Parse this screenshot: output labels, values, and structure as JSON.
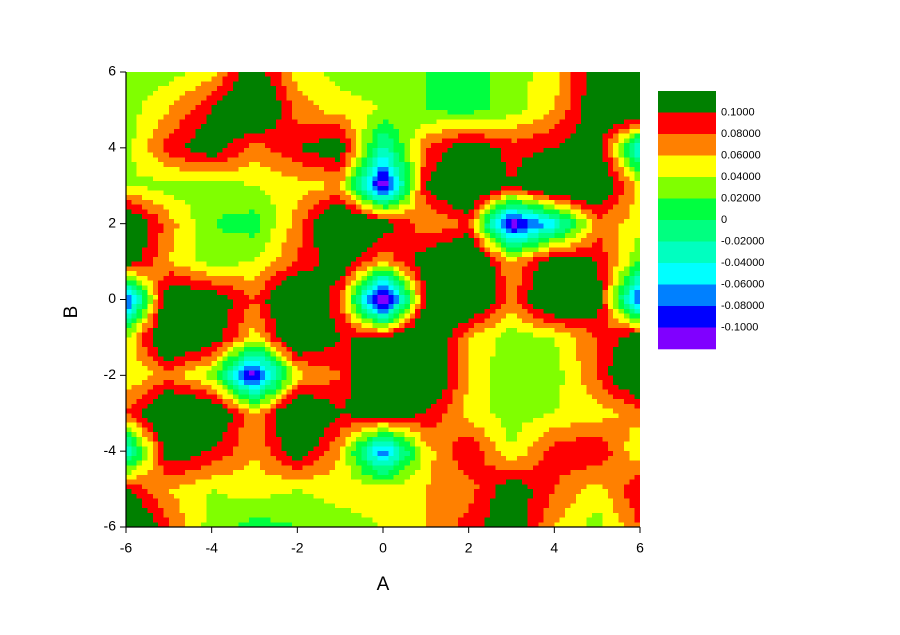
{
  "chart_data": {
    "type": "contour",
    "xlabel": "A",
    "ylabel": "B",
    "x": [
      -6,
      -5,
      -4,
      -3,
      -2,
      -1,
      0,
      1,
      2,
      3,
      4,
      5,
      6
    ],
    "y": [
      6,
      5,
      4,
      3,
      2,
      1,
      0,
      -1,
      -2,
      -3,
      -4,
      -5,
      -6
    ],
    "z": [
      [
        0.03,
        0.03,
        0.05,
        0.12,
        0.05,
        0.03,
        0.03,
        0.02,
        0.01,
        0.03,
        0.05,
        0.12,
        0.15
      ],
      [
        0.03,
        0.06,
        0.1,
        0.15,
        0.07,
        0.05,
        0.04,
        0.02,
        0.01,
        0.03,
        0.06,
        0.12,
        0.15
      ],
      [
        0.03,
        0.09,
        0.12,
        0.07,
        0.1,
        0.12,
        -0.03,
        0.08,
        0.12,
        0.09,
        0.1,
        0.12,
        -0.05
      ],
      [
        0.04,
        0.03,
        0.03,
        0.04,
        0.05,
        0.06,
        -0.12,
        0.1,
        0.15,
        0.1,
        0.15,
        0.14,
        0.05
      ],
      [
        0.14,
        0.07,
        0.02,
        0.01,
        0.07,
        0.15,
        0.12,
        0.06,
        0.08,
        -0.12,
        -0.05,
        0.07,
        0.05
      ],
      [
        0.12,
        0.06,
        0.03,
        0.04,
        0.08,
        0.12,
        0.06,
        0.12,
        0.15,
        0.06,
        0.12,
        0.1,
        0.02
      ],
      [
        -0.1,
        0.13,
        0.12,
        0.08,
        0.15,
        0.08,
        -0.15,
        0.1,
        0.15,
        0.07,
        0.15,
        0.12,
        -0.1
      ],
      [
        0.04,
        0.15,
        0.12,
        0.05,
        0.14,
        0.1,
        0.1,
        0.15,
        0.06,
        0.03,
        0.04,
        0.08,
        0.12
      ],
      [
        0.04,
        0.07,
        0.03,
        -0.12,
        0.05,
        0.08,
        0.15,
        0.15,
        0.06,
        0.02,
        0.03,
        0.08,
        0.15
      ],
      [
        0.08,
        0.15,
        0.14,
        0.06,
        0.15,
        0.1,
        0.12,
        0.1,
        0.05,
        0.03,
        0.04,
        0.05,
        0.07
      ],
      [
        -0.05,
        0.12,
        0.1,
        0.06,
        0.12,
        0.06,
        -0.08,
        0.05,
        0.1,
        0.04,
        0.09,
        0.1,
        0.04
      ],
      [
        0.1,
        0.06,
        0.04,
        0.05,
        0.04,
        0.05,
        0.05,
        0.06,
        0.07,
        0.12,
        0.08,
        0.05,
        0.1
      ],
      [
        0.15,
        0.08,
        0.03,
        0.01,
        0.02,
        0.03,
        0.04,
        0.06,
        0.09,
        0.12,
        0.06,
        0.03,
        0.08
      ]
    ],
    "xlim": [
      -6,
      6
    ],
    "ylim": [
      -6,
      6
    ],
    "xticks": [
      -6,
      -4,
      -2,
      0,
      2,
      4,
      6
    ],
    "yticks": [
      -6,
      -4,
      -2,
      0,
      2,
      4,
      6
    ],
    "levels": [
      {
        "value": 0.1,
        "label": "0.1000"
      },
      {
        "value": 0.08,
        "label": "0.08000"
      },
      {
        "value": 0.06,
        "label": "0.06000"
      },
      {
        "value": 0.04,
        "label": "0.04000"
      },
      {
        "value": 0.02,
        "label": "0.02000"
      },
      0,
      {
        "value": -0.02,
        "label": "-0.02000"
      },
      {
        "value": -0.04,
        "label": "-0.04000"
      },
      {
        "value": -0.06,
        "label": "-0.06000"
      },
      {
        "value": -0.08,
        "label": "-0.08000"
      },
      {
        "value": -0.1,
        "label": "-0.1000"
      }
    ],
    "colors": [
      "#008000",
      "#ff0000",
      "#ff8000",
      "#ffff00",
      "#80ff00",
      "#00ff40",
      "#00ff80",
      "#00ffc0",
      "#00ffff",
      "#0080ff",
      "#0000ff",
      "#8000ff"
    ]
  }
}
